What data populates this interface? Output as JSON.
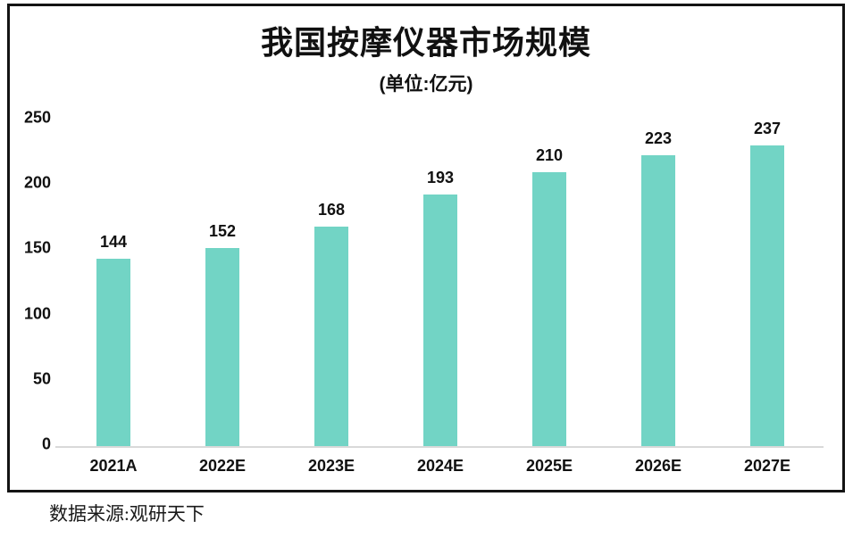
{
  "title": "我国按摩仪器市场规模",
  "subtitle": "(单位:亿元)",
  "source": "数据来源:观研天下",
  "colors": {
    "bar": "#72d4c5",
    "axis_line": "#d9d9d9",
    "frame_border": "#141414",
    "text": "#111111"
  },
  "chart_data": {
    "type": "bar",
    "title": "我国按摩仪器市场规模",
    "subtitle": "(单位:亿元)",
    "categories": [
      "2021A",
      "2022E",
      "2023E",
      "2024E",
      "2025E",
      "2026E",
      "2027E"
    ],
    "values": [
      144,
      152,
      168,
      193,
      210,
      223,
      237
    ],
    "yticks": [
      0,
      50,
      100,
      150,
      200,
      250
    ],
    "ylim": [
      0,
      250
    ],
    "xlabel": "",
    "ylabel": "",
    "grid": false,
    "legend": false,
    "bar_color": "#72d4c5",
    "source": "数据来源:观研天下"
  }
}
